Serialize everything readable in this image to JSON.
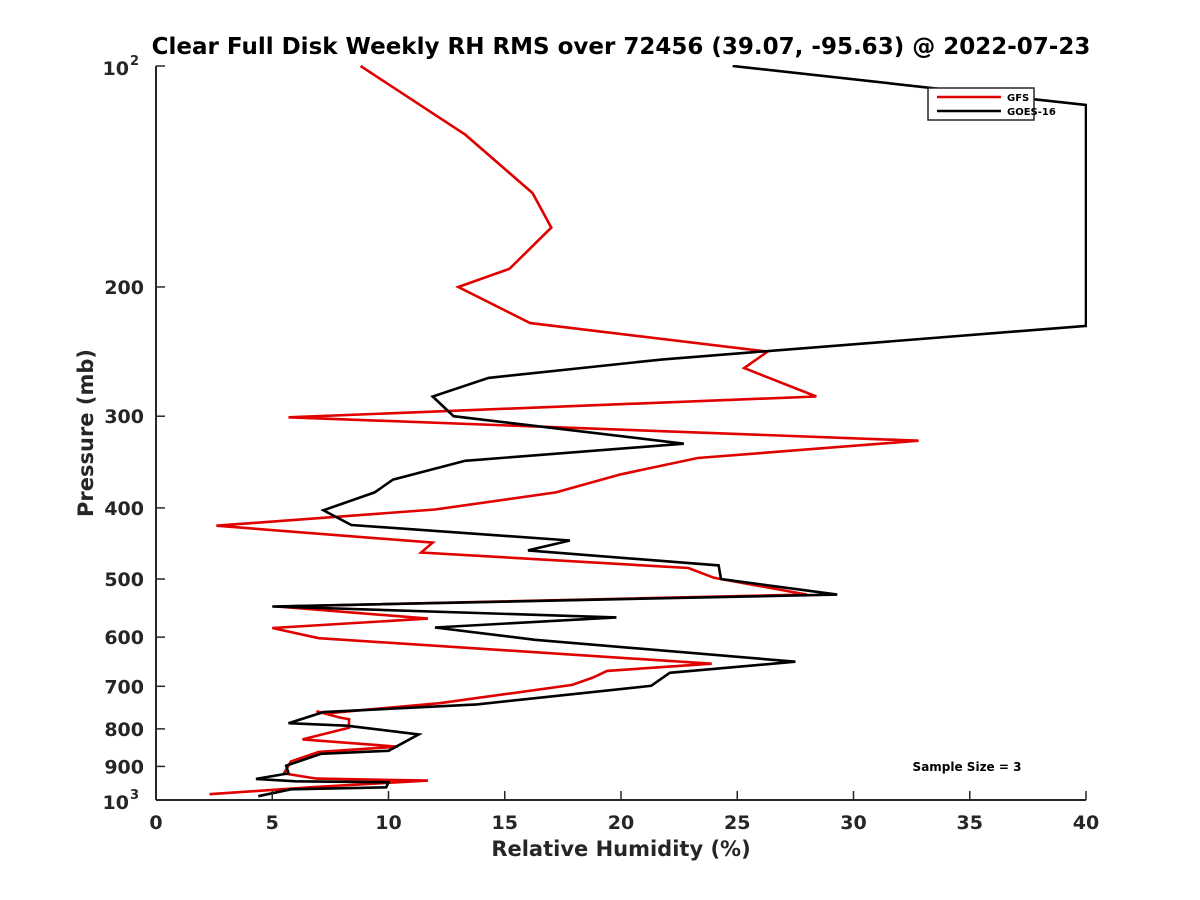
{
  "chart_data": {
    "type": "line",
    "title": "Clear Full Disk Weekly RH RMS over 72456 (39.07, -95.63) @ 2022-07-23",
    "xlabel": "Relative Humidity (%)",
    "ylabel": "Pressure (mb)",
    "xlim": [
      0,
      40
    ],
    "ylim": [
      100,
      1000
    ],
    "yscale": "log",
    "yreverse": true,
    "xticks": [
      "0",
      "5",
      "10",
      "15",
      "20",
      "25",
      "30",
      "35",
      "40"
    ],
    "yticks": [
      {
        "value": 100,
        "base": "10",
        "exp": "2"
      },
      {
        "value": 200,
        "label": "200"
      },
      {
        "value": 300,
        "label": "300"
      },
      {
        "value": 400,
        "label": "400"
      },
      {
        "value": 500,
        "label": "500"
      },
      {
        "value": 600,
        "label": "600"
      },
      {
        "value": 700,
        "label": "700"
      },
      {
        "value": 800,
        "label": "800"
      },
      {
        "value": 900,
        "label": "900"
      },
      {
        "value": 1000,
        "base": "10",
        "exp": "3"
      }
    ],
    "legend_position": "top-right",
    "annotation": "Sample Size = 3",
    "series": [
      {
        "name": "GFS",
        "color": "#e00000",
        "points": [
          [
            8.8,
            100
          ],
          [
            13.3,
            124
          ],
          [
            16.2,
            149
          ],
          [
            17.0,
            166
          ],
          [
            15.2,
            189
          ],
          [
            13.0,
            200
          ],
          [
            16.1,
            224
          ],
          [
            26.3,
            245
          ],
          [
            25.3,
            258
          ],
          [
            28.4,
            282
          ],
          [
            5.7,
            301
          ],
          [
            32.8,
            324
          ],
          [
            23.3,
            342
          ],
          [
            20.0,
            360
          ],
          [
            17.2,
            381
          ],
          [
            12.0,
            402
          ],
          [
            2.6,
            423
          ],
          [
            11.9,
            446
          ],
          [
            11.4,
            460
          ],
          [
            22.9,
            483
          ],
          [
            24.0,
            498
          ],
          [
            28.0,
            525
          ],
          [
            5.2,
            545
          ],
          [
            11.7,
            566
          ],
          [
            5.0,
            583
          ],
          [
            7.0,
            602
          ],
          [
            23.9,
            652
          ],
          [
            19.4,
            667
          ],
          [
            18.8,
            681
          ],
          [
            17.9,
            697
          ],
          [
            12.2,
            738
          ],
          [
            7.3,
            762
          ],
          [
            6.9,
            757
          ],
          [
            7.9,
            772
          ],
          [
            8.3,
            776
          ],
          [
            8.3,
            797
          ],
          [
            6.3,
            827
          ],
          [
            10.4,
            846
          ],
          [
            7.0,
            860
          ],
          [
            5.8,
            886
          ],
          [
            5.5,
            920
          ],
          [
            6.9,
            935
          ],
          [
            11.7,
            941
          ],
          [
            6.8,
            960
          ],
          [
            2.3,
            982
          ]
        ]
      },
      {
        "name": "GOES-16",
        "color": "#000000",
        "points": [
          [
            24.8,
            100
          ],
          [
            40.0,
            113
          ],
          [
            40.0,
            226
          ],
          [
            21.8,
            251
          ],
          [
            14.3,
            266
          ],
          [
            11.9,
            282
          ],
          [
            12.8,
            300
          ],
          [
            22.7,
            327
          ],
          [
            13.3,
            345
          ],
          [
            10.2,
            366
          ],
          [
            9.4,
            381
          ],
          [
            7.2,
            403
          ],
          [
            8.4,
            422
          ],
          [
            17.8,
            443
          ],
          [
            16.0,
            457
          ],
          [
            24.2,
            479
          ],
          [
            24.3,
            500
          ],
          [
            29.3,
            525
          ],
          [
            5.0,
            545
          ],
          [
            19.8,
            564
          ],
          [
            12.0,
            582
          ],
          [
            16.3,
            605
          ],
          [
            27.5,
            648
          ],
          [
            22.1,
            671
          ],
          [
            21.3,
            699
          ],
          [
            13.8,
            741
          ],
          [
            7.2,
            759
          ],
          [
            5.7,
            786
          ],
          [
            8.2,
            792
          ],
          [
            11.3,
            814
          ],
          [
            10.0,
            857
          ],
          [
            7.1,
            865
          ],
          [
            5.6,
            898
          ],
          [
            5.7,
            920
          ],
          [
            4.3,
            936
          ],
          [
            6.0,
            943
          ],
          [
            10.0,
            946
          ],
          [
            9.9,
            961
          ],
          [
            5.8,
            967
          ],
          [
            4.4,
            988
          ]
        ]
      }
    ]
  }
}
